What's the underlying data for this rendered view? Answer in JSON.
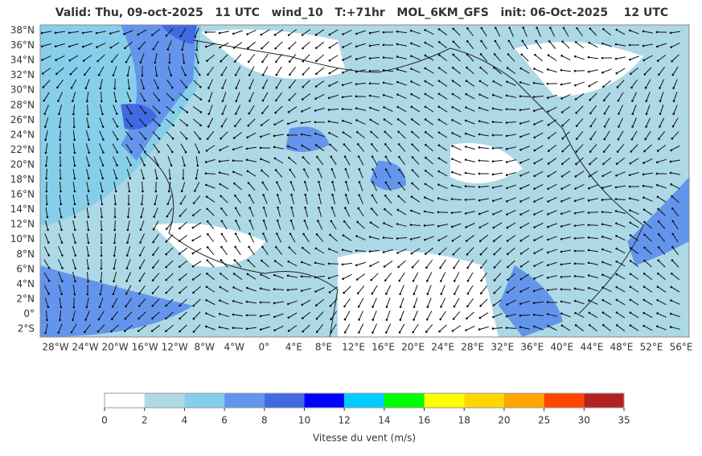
{
  "title": "Valid: Thu, 09-oct-2025   11 UTC   wind_10   T:+71hr   MOL_6KM_GFS   init: 06-Oct-2025    12 UTC",
  "map": {
    "lat_labels": [
      "38°N",
      "36°N",
      "34°N",
      "32°N",
      "30°N",
      "28°N",
      "26°N",
      "24°N",
      "22°N",
      "20°N",
      "18°N",
      "16°N",
      "14°N",
      "12°N",
      "10°N",
      "8°N",
      "6°N",
      "4°N",
      "2°N",
      "0°",
      "2°S"
    ],
    "lon_labels": [
      "28°W",
      "24°W",
      "20°W",
      "16°W",
      "12°W",
      "8°W",
      "4°W",
      "0°",
      "4°E",
      "8°E",
      "12°E",
      "16°E",
      "20°E",
      "24°E",
      "28°E",
      "32°E",
      "36°E",
      "40°E",
      "44°E",
      "48°E",
      "52°E",
      "56°E"
    ]
  },
  "colorbar": {
    "label": "Vitesse du vent (m/s)",
    "ticks": [
      0,
      2,
      4,
      6,
      8,
      10,
      12,
      14,
      16,
      18,
      20,
      25,
      30,
      35
    ],
    "colors": [
      "#ffffff",
      "#add8e6",
      "#87ceeb",
      "#6495ed",
      "#4169e1",
      "#0000ff",
      "#00ccff",
      "#00ff00",
      "#ffff00",
      "#ffd700",
      "#ffa500",
      "#ff4500",
      "#b22222"
    ]
  }
}
